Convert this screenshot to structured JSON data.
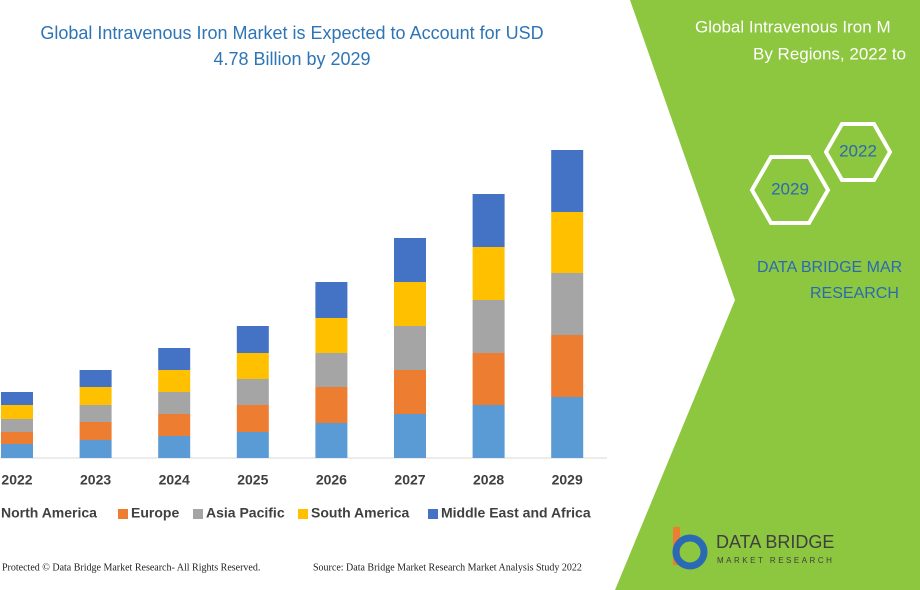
{
  "chart_data": {
    "type": "stacked-bar",
    "title": [
      "Global Intravenous Iron Market is Expected to Account for USD",
      "4.78 Billion by 2029"
    ],
    "categories": [
      "2022",
      "2023",
      "2024",
      "2025",
      "2026",
      "2027",
      "2028",
      "2029"
    ],
    "series": [
      {
        "name": "North America",
        "color": "#5b9bd5",
        "values": [
          14,
          18,
          22,
          26,
          35,
          44,
          53,
          61
        ]
      },
      {
        "name": "Europe",
        "color": "#ed7d31",
        "values": [
          12,
          18,
          22,
          27,
          36,
          44,
          52,
          62
        ]
      },
      {
        "name": "Asia Pacific",
        "color": "#a5a5a5",
        "values": [
          13,
          17,
          22,
          26,
          34,
          44,
          53,
          62
        ]
      },
      {
        "name": "South America",
        "color": "#ffc000",
        "values": [
          14,
          18,
          22,
          26,
          35,
          44,
          53,
          61
        ]
      },
      {
        "name": "Middle East and Africa",
        "color": "#4472c4",
        "values": [
          13,
          17,
          22,
          27,
          36,
          44,
          53,
          62
        ]
      }
    ],
    "ylim": [
      0,
      320
    ],
    "legend": "bottom"
  },
  "panel": {
    "heading": [
      "Global Intravenous Iron M",
      "By Regions, 2022 to"
    ],
    "hexagons": [
      "2029",
      "2022"
    ],
    "brand": [
      "DATA BRIDGE MAR",
      "RESEARCH"
    ],
    "logo": [
      "DATA BRIDGE",
      "MARKET RESEARCH"
    ]
  },
  "footer": {
    "left": "Protected © Data Bridge Market Research- All Rights Reserved.",
    "right": "Source: Data Bridge Market Research Market Analysis Study 2022"
  }
}
